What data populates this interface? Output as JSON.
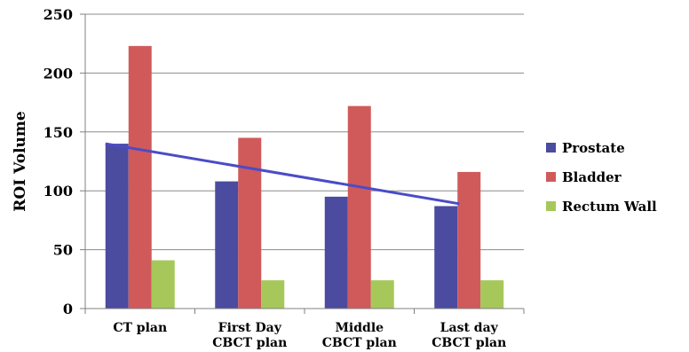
{
  "chart_data": {
    "type": "bar",
    "title": "",
    "xlabel": "",
    "ylabel": "ROI Volume",
    "ylim": [
      0,
      250
    ],
    "yticks": [
      0,
      50,
      100,
      150,
      200,
      250
    ],
    "grid": "horizontal",
    "legend_position": "right",
    "categories": [
      [
        "CT plan"
      ],
      [
        "First Day",
        "CBCT plan"
      ],
      [
        "Middle",
        "CBCT plan"
      ],
      [
        "Last day",
        "CBCT plan"
      ]
    ],
    "series": [
      {
        "name": "Prostate",
        "color": "#4B4BA0",
        "values": [
          140,
          108,
          95,
          87
        ]
      },
      {
        "name": "Bladder",
        "color": "#D05A5A",
        "values": [
          223,
          145,
          172,
          116
        ]
      },
      {
        "name": "Rectum Wall",
        "color": "#A6C85A",
        "values": [
          41,
          24,
          24,
          24
        ]
      }
    ],
    "trendline": {
      "series": "Prostate",
      "color": "#4B4BC8",
      "start": 140,
      "end": 89
    }
  }
}
